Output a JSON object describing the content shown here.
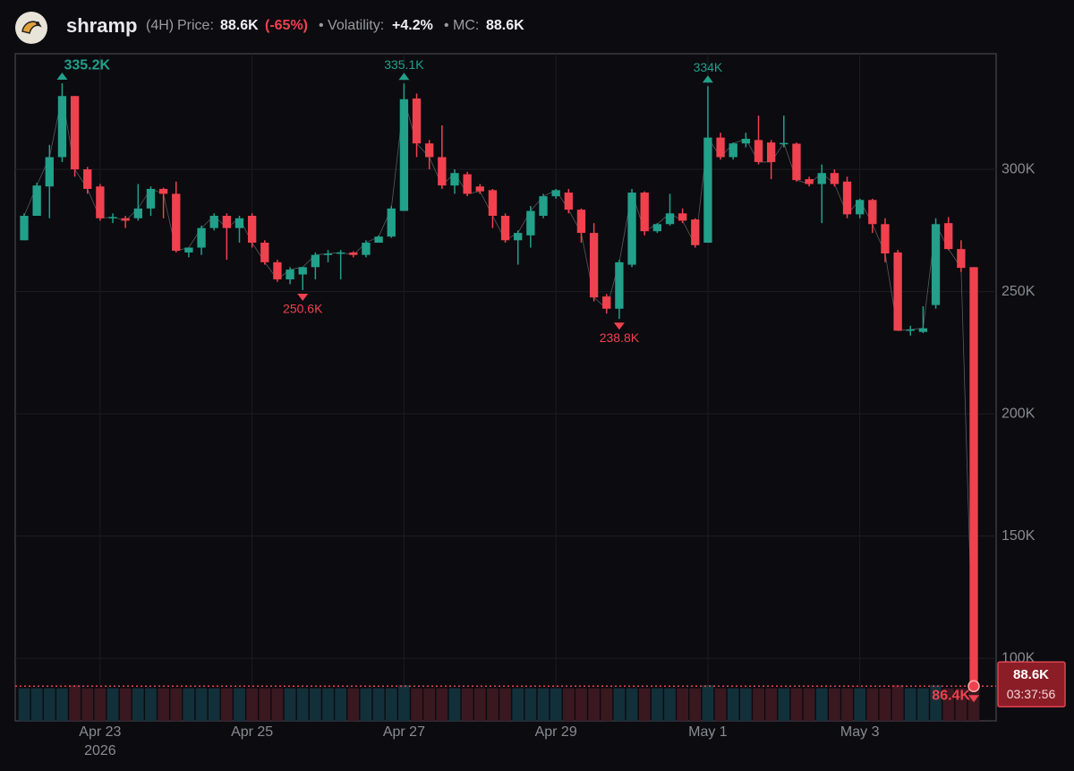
{
  "header": {
    "name": "shramp",
    "interval": "(4H)",
    "price_label": "Price:",
    "price": "88.6K",
    "change": "(-65%)",
    "volatility_label": "• Volatility:",
    "volatility": "+4.2%",
    "mc_label": "• MC:",
    "mc": "88.6K"
  },
  "chart_data": {
    "type": "candlestick",
    "categories": [
      null,
      null,
      null,
      null,
      null,
      null,
      "Apr 23",
      null,
      null,
      null,
      null,
      null,
      null,
      null,
      null,
      null,
      null,
      null,
      "Apr 25",
      null,
      null,
      null,
      null,
      null,
      null,
      null,
      null,
      null,
      null,
      null,
      "Apr 27",
      null,
      null,
      null,
      null,
      null,
      null,
      null,
      null,
      null,
      null,
      null,
      "Apr 29",
      null,
      null,
      null,
      null,
      null,
      null,
      null,
      null,
      null,
      null,
      null,
      "May 1",
      null,
      null,
      null,
      null,
      null,
      null,
      null,
      null,
      null,
      null,
      null,
      "May 3",
      null,
      null,
      null,
      null,
      null,
      null,
      null,
      null,
      null
    ],
    "year_label": "2026",
    "open": [
      271,
      281,
      293,
      305,
      330,
      300,
      293,
      280,
      280,
      280,
      284,
      292,
      290,
      266,
      268,
      276,
      281,
      276,
      281,
      270,
      262,
      255,
      257,
      260,
      265,
      265.5,
      266,
      265,
      270,
      272.5,
      283,
      329,
      310.6,
      305,
      293.4,
      298,
      293,
      291.5,
      281,
      271,
      273,
      281,
      289,
      290.5,
      283.5,
      274,
      248,
      243,
      261,
      290.5,
      274.7,
      277.6,
      282,
      279.5,
      270,
      313,
      305,
      310.6,
      312,
      311,
      310.5,
      310.5,
      296,
      294,
      298.5,
      295,
      281.6,
      287.5,
      277.6,
      266,
      234,
      233.5,
      244.5,
      278,
      267.4,
      260
    ],
    "high": [
      282,
      294.5,
      310,
      335.2,
      330,
      301,
      294,
      282,
      281,
      294,
      293,
      292.5,
      295,
      268,
      277,
      282,
      282,
      281,
      282,
      271,
      263,
      260,
      260,
      266,
      267,
      267,
      266.5,
      271,
      273,
      285,
      335.1,
      331,
      312,
      318,
      300,
      299,
      294,
      292,
      282,
      275,
      285,
      290,
      292,
      292,
      284,
      278,
      249,
      263,
      292,
      291,
      278,
      290,
      284,
      280,
      334,
      315,
      311,
      315,
      322,
      312,
      322,
      311,
      297,
      302,
      300,
      297,
      288,
      288,
      280,
      267,
      236,
      244,
      280,
      280.5,
      271,
      260
    ],
    "low": [
      271,
      281,
      280,
      303,
      297,
      290,
      279,
      278,
      276,
      279,
      281,
      280,
      266,
      264,
      265,
      275,
      263,
      270,
      268,
      261,
      254,
      253,
      250.6,
      255,
      262,
      255,
      264,
      264,
      270,
      272,
      283,
      305,
      300,
      292,
      290,
      289,
      290,
      276,
      270,
      261,
      268,
      280,
      288,
      282,
      270,
      246,
      241,
      238.8,
      260,
      273,
      274,
      277,
      278,
      268,
      270,
      304,
      304,
      309,
      302,
      296,
      309,
      295,
      293,
      278,
      293,
      280,
      280,
      274,
      262,
      234,
      232,
      233,
      243,
      267,
      258,
      86.4
    ],
    "close": [
      281,
      293.4,
      305,
      330,
      300,
      292,
      280,
      280.5,
      279,
      284,
      292,
      290,
      266.7,
      268,
      276,
      281,
      276,
      280,
      270,
      262,
      255,
      259,
      260,
      265,
      265.5,
      266,
      265,
      270,
      272.5,
      284,
      328.7,
      310.6,
      305,
      293.4,
      298.5,
      290,
      291,
      281,
      271,
      274,
      283,
      289,
      291.5,
      283.5,
      274,
      247.6,
      243,
      262,
      290.5,
      274.7,
      277.6,
      282,
      279,
      269,
      313,
      305,
      310.6,
      312.5,
      303,
      303,
      310.8,
      295.6,
      294,
      298.5,
      294,
      281.6,
      287.5,
      277.6,
      265.6,
      234,
      234.5,
      235,
      277.6,
      267.4,
      259.7,
      88.6
    ],
    "volume": [
      10,
      10,
      10,
      10,
      11,
      10,
      10,
      10,
      10,
      10,
      10,
      10,
      10,
      10,
      10,
      10,
      10,
      10,
      10,
      10,
      10,
      10,
      10,
      10,
      10,
      10,
      10,
      10,
      10,
      10,
      11,
      10,
      10,
      10,
      10,
      10,
      10,
      10,
      10,
      10,
      10,
      10,
      10,
      10,
      10,
      10,
      10,
      10,
      10,
      10,
      10,
      10,
      10,
      10,
      11,
      10,
      10,
      10,
      10,
      10,
      10,
      10,
      10,
      10,
      10,
      10,
      10,
      10,
      10,
      11,
      10,
      10,
      11,
      10,
      10,
      10
    ],
    "up_color": "#22a08a",
    "down_color": "#f0414e",
    "ylim": [
      74.4,
      347.3
    ],
    "yticks": [
      {
        "value": 100,
        "label": "100K"
      },
      {
        "value": 150,
        "label": "150K"
      },
      {
        "value": 200,
        "label": "200K"
      },
      {
        "value": 250,
        "label": "250K"
      },
      {
        "value": 300,
        "label": "300K"
      }
    ],
    "grid": true,
    "annotations": [
      {
        "label": "335.2K",
        "value": 335.2,
        "candle": 3,
        "kind": "high"
      },
      {
        "label": "335.1K",
        "value": 335.1,
        "candle": 30,
        "kind": "high"
      },
      {
        "label": "334K",
        "value": 334,
        "candle": 54,
        "kind": "high"
      },
      {
        "label": "250.6K",
        "value": 250.6,
        "candle": 22,
        "kind": "low"
      },
      {
        "label": "238.8K",
        "value": 238.8,
        "candle": 47,
        "kind": "low"
      },
      {
        "label": "86.4K",
        "value": 86.4,
        "candle": 75,
        "kind": "low"
      }
    ],
    "current_price": {
      "value": 88.6,
      "label": "88.6K"
    },
    "countdown": "03:37:56"
  }
}
